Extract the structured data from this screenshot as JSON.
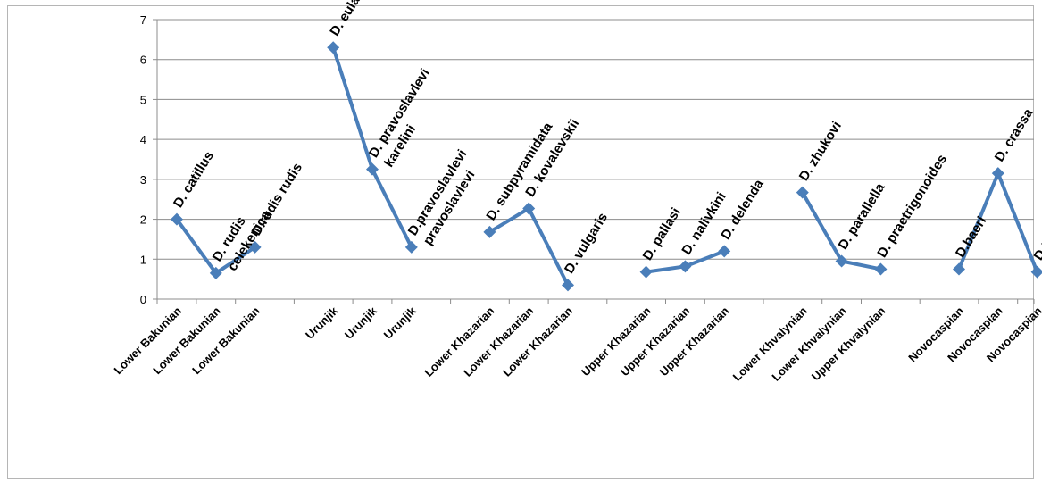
{
  "chart_data": {
    "type": "line",
    "ylim": [
      0,
      7
    ],
    "yticks": [
      "0",
      "1",
      "2",
      "3",
      "4",
      "5",
      "6",
      "7"
    ],
    "grid": true,
    "legend": "none",
    "line_color": "#4a7eb9",
    "categories": [
      "Lower Bakunian",
      "Lower Bakunian",
      "Lower Bakunian",
      "Urunjik",
      "Urunjik",
      "Urunjik",
      "Lower Khazarian",
      "Lower Khazarian",
      "Lower Khazarian",
      "Upper Khazarian",
      "Upper Khazarian",
      "Upper Khazarian",
      "Lower Khvalynian",
      "Lower Khvalynian",
      "Upper Khvalynian",
      "Novocaspian",
      "Novocaspian",
      "Novocaspian"
    ],
    "series_segments": [
      {
        "values": [
          2.0,
          0.65,
          1.3
        ]
      },
      {
        "values": [
          6.3,
          3.25,
          1.3
        ]
      },
      {
        "values": [
          1.68,
          2.27,
          0.35
        ]
      },
      {
        "values": [
          0.68,
          0.82,
          1.2
        ]
      },
      {
        "values": [
          2.67,
          0.95,
          0.75
        ]
      },
      {
        "values": [
          0.75,
          3.15,
          0.68
        ]
      }
    ],
    "point_labels": [
      [
        "D. catillus"
      ],
      [
        "D. rudis",
        "celekenica"
      ],
      [
        "D.rudis rudis"
      ],
      [
        "D. eulachia"
      ],
      [
        "D. pravoslavlevi",
        "karelini"
      ],
      [
        "D.pravoslavlevi",
        "pravoslavlevi"
      ],
      [
        "D. subpyramidata"
      ],
      [
        "D. kovalevskii"
      ],
      [
        "D. vulgaris"
      ],
      [
        "D. pallasi"
      ],
      [
        "D. nalivkini"
      ],
      [
        "D. delenda"
      ],
      [
        "D. zhukovi"
      ],
      [
        "D. parallella"
      ],
      [
        "D. praetrigonoides"
      ],
      [
        "D.baeri"
      ],
      [
        "D. crassa"
      ],
      [
        "D trigonoides"
      ]
    ]
  }
}
